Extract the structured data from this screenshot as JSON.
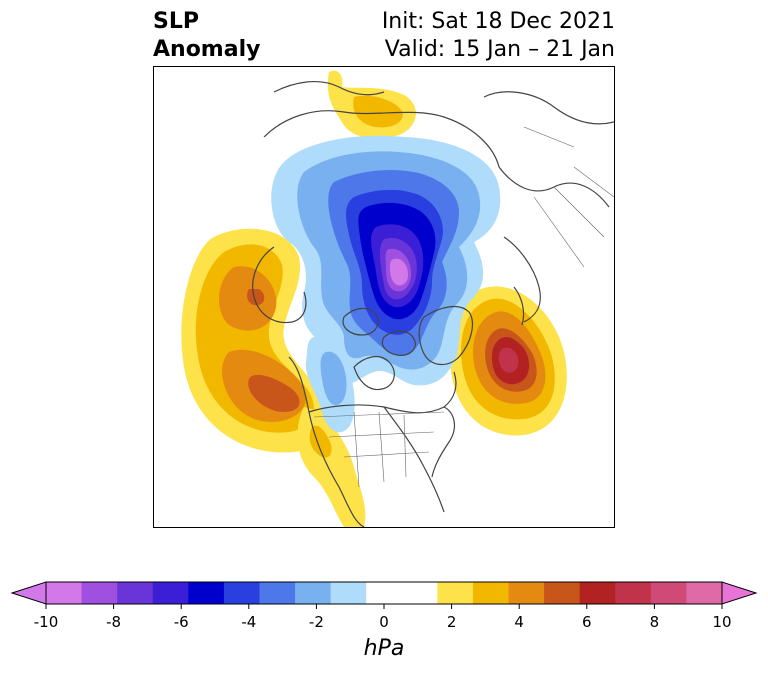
{
  "header": {
    "title_line1": "SLP",
    "title_line2": "Anomaly",
    "init_text": "Init: Sat 18 Dec 2021",
    "valid_text": "Valid: 15 Jan – 21 Jan"
  },
  "colorbar": {
    "unit_label": "hPa",
    "tick_labels": [
      "-10",
      "-8",
      "-6",
      "-4",
      "-2",
      "0",
      "2",
      "4",
      "6",
      "8",
      "10"
    ],
    "bin_colors": [
      "#d378e8",
      "#a050e0",
      "#6a35d8",
      "#3a1fd6",
      "#0000cd",
      "#2a3fe0",
      "#4e78ea",
      "#78b0f0",
      "#aedcfa",
      "#ffffff",
      "#ffffff",
      "#fde24a",
      "#f2b800",
      "#e48a10",
      "#c8561a",
      "#b22222",
      "#c0334a",
      "#d04a78",
      "#e06aa8"
    ],
    "under_color": "#d378e8",
    "over_color": "#e874d8"
  },
  "map": {
    "projection": "north-polar-stereographic",
    "features": [
      {
        "name": "negative-anomaly-arctic",
        "min_hPa": -10
      },
      {
        "name": "positive-anomaly-north-pacific",
        "max_hPa": 5
      },
      {
        "name": "positive-anomaly-north-atlantic",
        "max_hPa": 7
      },
      {
        "name": "positive-anomaly-north-siberia",
        "max_hPa": 2
      },
      {
        "name": "positive-anomaly-southwest-us",
        "max_hPa": 2
      }
    ]
  }
}
